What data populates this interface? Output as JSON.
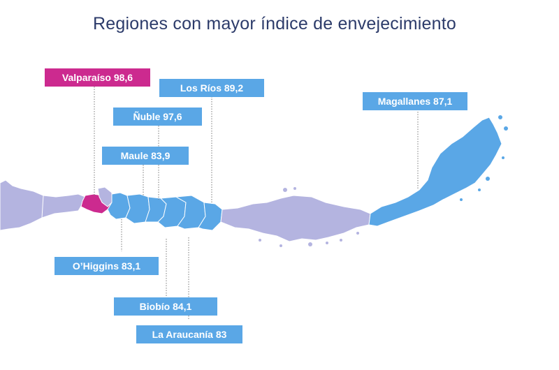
{
  "title": "Regiones con mayor índice de envejecimiento",
  "colors": {
    "highlight_pink": "#cc2a8f",
    "highlight_blue": "#5aa7e6",
    "other_regions": "#b4b4e0",
    "title_text": "#2c3b6a"
  },
  "regions": [
    {
      "id": "valparaiso",
      "label": "Valparaíso 98,6",
      "name": "Valparaíso",
      "index": 98.6,
      "color": "pink"
    },
    {
      "id": "los_rios",
      "label": "Los Ríos 89,2",
      "name": "Los Ríos",
      "index": 89.2,
      "color": "blue"
    },
    {
      "id": "nuble",
      "label": "Ñuble 97,6",
      "name": "Ñuble",
      "index": 97.6,
      "color": "blue"
    },
    {
      "id": "maule",
      "label": "Maule 83,9",
      "name": "Maule",
      "index": 83.9,
      "color": "blue"
    },
    {
      "id": "magallanes",
      "label": "Magallanes 87,1",
      "name": "Magallanes",
      "index": 87.1,
      "color": "blue"
    },
    {
      "id": "ohiggins",
      "label": "O’Higgins 83,1",
      "name": "O’Higgins",
      "index": 83.1,
      "color": "blue"
    },
    {
      "id": "biobio",
      "label": "Biobío 84,1",
      "name": "Biobío",
      "index": 84.1,
      "color": "blue"
    },
    {
      "id": "la_araucania",
      "label": "La Araucanía 83",
      "name": "La Araucanía",
      "index": 83,
      "color": "blue"
    }
  ]
}
